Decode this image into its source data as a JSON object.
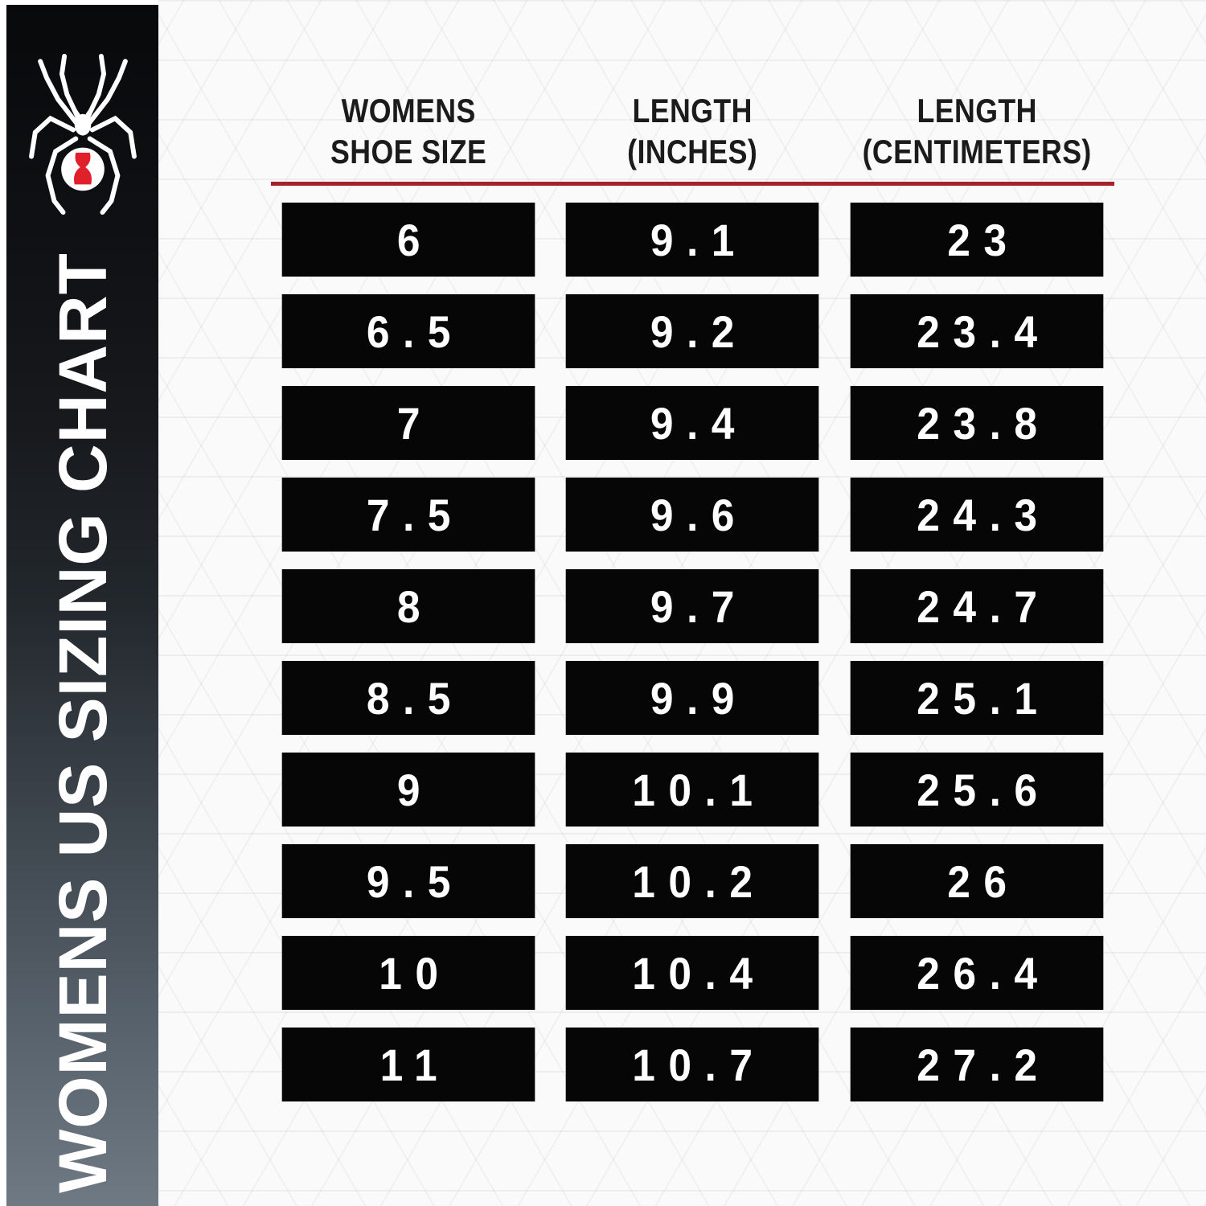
{
  "page_title": "WOMENS US SIZING CHART",
  "sidebar": {
    "title": "WOMENS US SIZING CHART",
    "logo_icon": "spyder-black-widow-spider-icon",
    "hourglass_color": "#E0202A",
    "gradient_top": "#08090B",
    "gradient_bottom": "#6F7984"
  },
  "table": {
    "headers": [
      {
        "line1": "WOMENS",
        "line2": "SHOE SIZE"
      },
      {
        "line1": "LENGTH",
        "line2": "(INCHES)"
      },
      {
        "line1": "LENGTH",
        "line2": "(CENTIMETERS)"
      }
    ],
    "rows": [
      [
        "6",
        "9.1",
        "23"
      ],
      [
        "6.5",
        "9.2",
        "23.4"
      ],
      [
        "7",
        "9.4",
        "23.8"
      ],
      [
        "7.5",
        "9.6",
        "24.3"
      ],
      [
        "8",
        "9.7",
        "24.7"
      ],
      [
        "8.5",
        "9.9",
        "25.1"
      ],
      [
        "9",
        "10.1",
        "25.6"
      ],
      [
        "9.5",
        "10.2",
        "26"
      ],
      [
        "10",
        "10.4",
        "26.4"
      ],
      [
        "11",
        "10.7",
        "27.2"
      ]
    ],
    "divider_color": "#A4232B",
    "cell_bg": "#060606",
    "cell_text_color": "#FFFFFF"
  },
  "chart_data": {
    "type": "table",
    "title": "WOMENS US SIZING CHART",
    "columns": [
      "WOMENS SHOE SIZE",
      "LENGTH (INCHES)",
      "LENGTH (CENTIMETERS)"
    ],
    "rows": [
      [
        6,
        9.1,
        23
      ],
      [
        6.5,
        9.2,
        23.4
      ],
      [
        7,
        9.4,
        23.8
      ],
      [
        7.5,
        9.6,
        24.3
      ],
      [
        8,
        9.7,
        24.7
      ],
      [
        8.5,
        9.9,
        25.1
      ],
      [
        9,
        10.1,
        25.6
      ],
      [
        9.5,
        10.2,
        26
      ],
      [
        10,
        10.4,
        26.4
      ],
      [
        11,
        10.7,
        27.2
      ]
    ]
  }
}
